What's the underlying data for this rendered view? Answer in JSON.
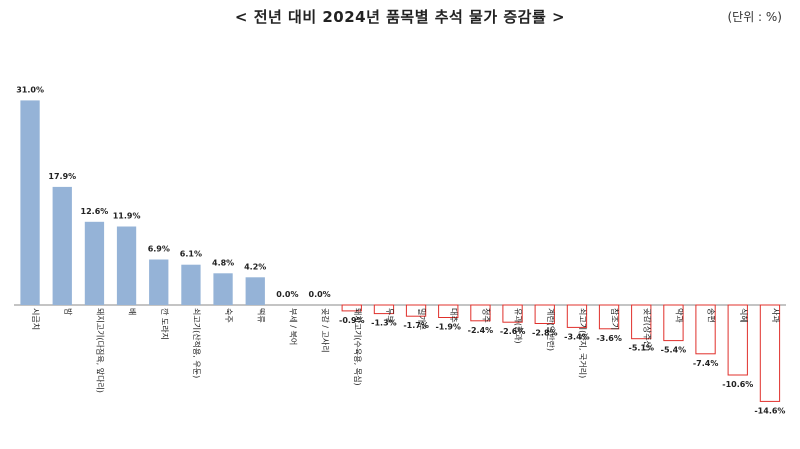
{
  "title": "< 전년 대비 2024년 품목별 추석 물가 증감률 >",
  "unit": "(단위 : %)",
  "colors": {
    "positive_fill": "#95b3d7",
    "negative_stroke": "#e0302b",
    "baseline": "#888888"
  },
  "chart_data": {
    "type": "bar",
    "title": "< 전년 대비 2024년 품목별 추석 물가 증감률 >",
    "unit": "(단위 : %)",
    "categories": [
      "시금치",
      "밤",
      "돼지고기(다짐육, 앞다리)",
      "배",
      "깐 도라지",
      "쇠고기(산적용, 우둔)",
      "숙주",
      "떡류",
      "부세 / 북어",
      "곶감 / 고사리",
      "돼지고기(수육용, 목심)",
      "두부",
      "밀가루",
      "대추",
      "청주",
      "유과(한과)",
      "계란(일반란)",
      "쇠고기(양지, 국거리)",
      "참조기",
      "곶감(상주산)",
      "약과",
      "송편",
      "식혜",
      "사과"
    ],
    "values": [
      31.0,
      17.9,
      12.6,
      11.9,
      6.9,
      6.1,
      4.8,
      4.2,
      0.0,
      0.0,
      -0.9,
      -1.3,
      -1.7,
      -1.9,
      -2.4,
      -2.6,
      -2.8,
      -3.4,
      -3.6,
      -5.1,
      -5.4,
      -7.4,
      -10.6,
      -14.6
    ],
    "value_labels": [
      "31.0%",
      "17.9%",
      "12.6%",
      "11.9%",
      "6.9%",
      "6.1%",
      "4.8%",
      "4.2%",
      "0.0%",
      "0.0%",
      "-0.9%",
      "-1.3%",
      "-1.7%",
      "-1.9%",
      "-2.4%",
      "-2.6%",
      "-2.8%",
      "-3.4%",
      "-3.6%",
      "-5.1%",
      "-5.4%",
      "-7.4%",
      "-10.6%",
      "-14.6%"
    ],
    "ylim": [
      -15,
      32
    ],
    "grid": false,
    "legend": "none"
  }
}
